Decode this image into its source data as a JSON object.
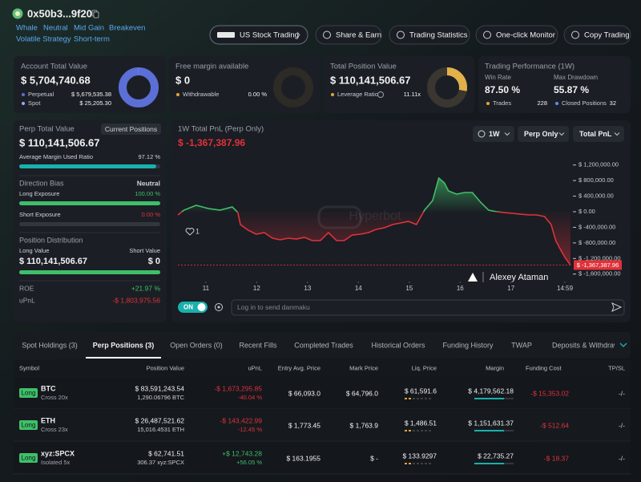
{
  "header": {
    "address": "0x50b3...9f20",
    "tags": [
      "Whale",
      "Neutral",
      "Mid Gain",
      "Breakeven",
      "Volatile Strategy",
      "Short-term"
    ],
    "buttons": [
      "US Stock Trading",
      "Share & Earn",
      "Trading Statistics",
      "One-click Monitor",
      "Copy Trading"
    ]
  },
  "cards": {
    "account": {
      "title": "Account Total Value",
      "value": "$ 5,704,740.68",
      "items": [
        {
          "label": "Perpetual",
          "value": 5679535.38,
          "value_label": "$ 5,679,535.38",
          "color": "#5b6fd6"
        },
        {
          "label": "Spot",
          "value": 25205.3,
          "value_label": "$ 25,205.30",
          "color": "#9aa9ff"
        }
      ]
    },
    "margin": {
      "title": "Free margin available",
      "value": "$ 0",
      "items": [
        {
          "label": "Withdrawable",
          "value": 0,
          "value_label": "0.00 %",
          "color": "#e6a23c"
        }
      ]
    },
    "position": {
      "title": "Total Position Value",
      "value": "$ 110,141,506.67",
      "items": [
        {
          "label": "Leverage Ratio",
          "value_label": "11.11x",
          "color": "#e6a23c"
        }
      ]
    },
    "performance": {
      "title": "Trading Performance (1W)",
      "win_rate_label": "Win Rate",
      "win_rate": "87.50 %",
      "drawdown_label": "Max Drawdown",
      "drawdown": "55.87 %",
      "trades_label": "Trades",
      "trades": 228,
      "closed_label": "Closed Positions",
      "closed": 32
    }
  },
  "perp": {
    "title": "Perp Total Value",
    "button": "Current Positions",
    "value": "$ 110,141,506.67",
    "margin_ratio": {
      "label": "Average Margin Used Ratio",
      "value": 97.12,
      "value_label": "97.12 %"
    },
    "bias_label": "Direction Bias",
    "bias": "Neutral",
    "long_exposure": {
      "label": "Long Exposure",
      "value": 100,
      "value_label": "100.00 %"
    },
    "short_exposure": {
      "label": "Short Exposure",
      "value": 0,
      "value_label": "0.00 %"
    },
    "distribution": {
      "title": "Position Distribution",
      "long": {
        "label": "Long Value",
        "value": 110141506.67,
        "value_label": "$ 110,141,506.67"
      },
      "short": {
        "label": "Short Value",
        "value": 0,
        "value_label": "$ 0"
      }
    },
    "roe_label": "ROE",
    "roe": "+21.97 %",
    "upnl_label": "uPnL",
    "upnl": "-$ 1,803,975.56"
  },
  "chart_data": {
    "type": "line",
    "title": "1W Total PnL (Perp Only)",
    "current_label": "$ -1,367,387.96",
    "controls": [
      "1W",
      "Perp Only",
      "Total PnL"
    ],
    "watermark": "Hyperbot",
    "author": "Alexey Ataman",
    "likes": 1,
    "up_color": "#3fbf6a",
    "down_color": "#e0323a",
    "x": [
      10.45,
      10.57,
      10.81,
      11.05,
      11.28,
      11.52,
      11.63,
      11.68,
      11.83,
      11.99,
      12.15,
      12.31,
      12.46,
      12.62,
      12.78,
      12.94,
      13.09,
      13.25,
      13.41,
      13.57,
      13.72,
      13.88,
      14.04,
      14.2,
      14.35,
      14.51,
      14.67,
      14.83,
      14.98,
      15.14,
      15.3,
      15.46,
      15.58,
      15.69,
      15.77,
      15.93,
      16.09,
      16.24,
      16.4,
      16.56,
      16.72,
      16.87,
      17.03,
      17.19,
      17.35,
      17.5,
      17.66,
      17.79,
      17.88,
      17.98,
      18.07,
      18.17
    ],
    "values": [
      -82000,
      41000,
      165000,
      82000,
      41000,
      123000,
      -21000,
      -329000,
      -473000,
      -576000,
      -535000,
      -679000,
      -720000,
      -679000,
      -700000,
      -658000,
      -741000,
      -741000,
      -535000,
      -741000,
      -741000,
      -597000,
      -576000,
      -535000,
      -453000,
      -412000,
      -329000,
      -288000,
      -247000,
      -329000,
      41000,
      288000,
      864000,
      741000,
      535000,
      453000,
      494000,
      494000,
      247000,
      41000,
      0,
      -21000,
      -41000,
      -62000,
      -82000,
      -82000,
      -123000,
      -329000,
      -741000,
      -988000,
      -1193000,
      -1367387.96
    ],
    "xlim": [
      10.45,
      18.17
    ],
    "xticks": [
      11,
      12,
      13,
      14,
      15,
      16,
      17,
      {
        "value": 18.06,
        "label": "14:59"
      }
    ],
    "ylim": [
      -1700000,
      1400000
    ],
    "yticks": [
      {
        "value": 1200000,
        "label": "$ 1,200,000.00"
      },
      {
        "value": 800000,
        "label": "$ 800,000.00"
      },
      {
        "value": 400000,
        "label": "$ 400,000.00"
      },
      {
        "value": 0,
        "label": "$ 0.00"
      },
      {
        "value": -400000,
        "label": "$ -400,000.00"
      },
      {
        "value": -800000,
        "label": "$ -800,000.00"
      },
      {
        "value": -1200000,
        "label": "$ -1,200,000.00"
      },
      {
        "value": -1600000,
        "label": "$ -1,600,000.00"
      }
    ]
  },
  "danmaku": {
    "toggle": "ON",
    "placeholder": "Log in to send danmaku"
  },
  "tabs": [
    "Spot Holdings (3)",
    "Perp Positions (3)",
    "Open Orders (0)",
    "Recent Fills",
    "Completed Trades",
    "Historical Orders",
    "Funding History",
    "TWAP",
    "Deposits & Withdrawals"
  ],
  "active_tab": 1,
  "table": {
    "columns": [
      "Symbol",
      "Position Value",
      "uPnL",
      "Entry Avg. Price",
      "Mark Price",
      "Liq. Price",
      "Margin",
      "Funding Cost",
      "TP/SL"
    ],
    "rows": [
      {
        "side": "Long",
        "symbol": "BTC",
        "mode": "Cross 20x",
        "position_value": "$ 83,591,243.54",
        "size": "1,290.06796 BTC",
        "upnl": "-$ 1,673,295.85",
        "upnl_pct": "-40.04 %",
        "entry": "$ 66,093.0",
        "mark": "$ 64,796.0",
        "liq": "$ 61,591.6",
        "margin": "$ 4,179,562.18",
        "funding": "-$ 15,353.02",
        "tpsl": "-/-"
      },
      {
        "side": "Long",
        "symbol": "ETH",
        "mode": "Cross 23x",
        "position_value": "$ 26,487,521.62",
        "size": "15,016.4531 ETH",
        "upnl": "-$ 143,422.99",
        "upnl_pct": "-12.45 %",
        "entry": "$ 1,773.45",
        "mark": "$ 1,763.9",
        "liq": "$ 1,486.51",
        "margin": "$ 1,151,631.37",
        "funding": "-$ 512.64",
        "tpsl": "-/-"
      },
      {
        "side": "Long",
        "symbol": "xyz:SPCX",
        "mode": "Isolated 5x",
        "position_value": "$ 62,741.51",
        "size": "306.37 xyz:SPCX",
        "upnl": "+$ 12,743.28",
        "upnl_pct": "+56.05 %",
        "entry": "$ 163.1955",
        "mark": "$ -",
        "liq": "$ 133.9297",
        "margin": "$ 22,735.27",
        "funding": "-$ 18.37",
        "tpsl": "-/-"
      }
    ]
  }
}
